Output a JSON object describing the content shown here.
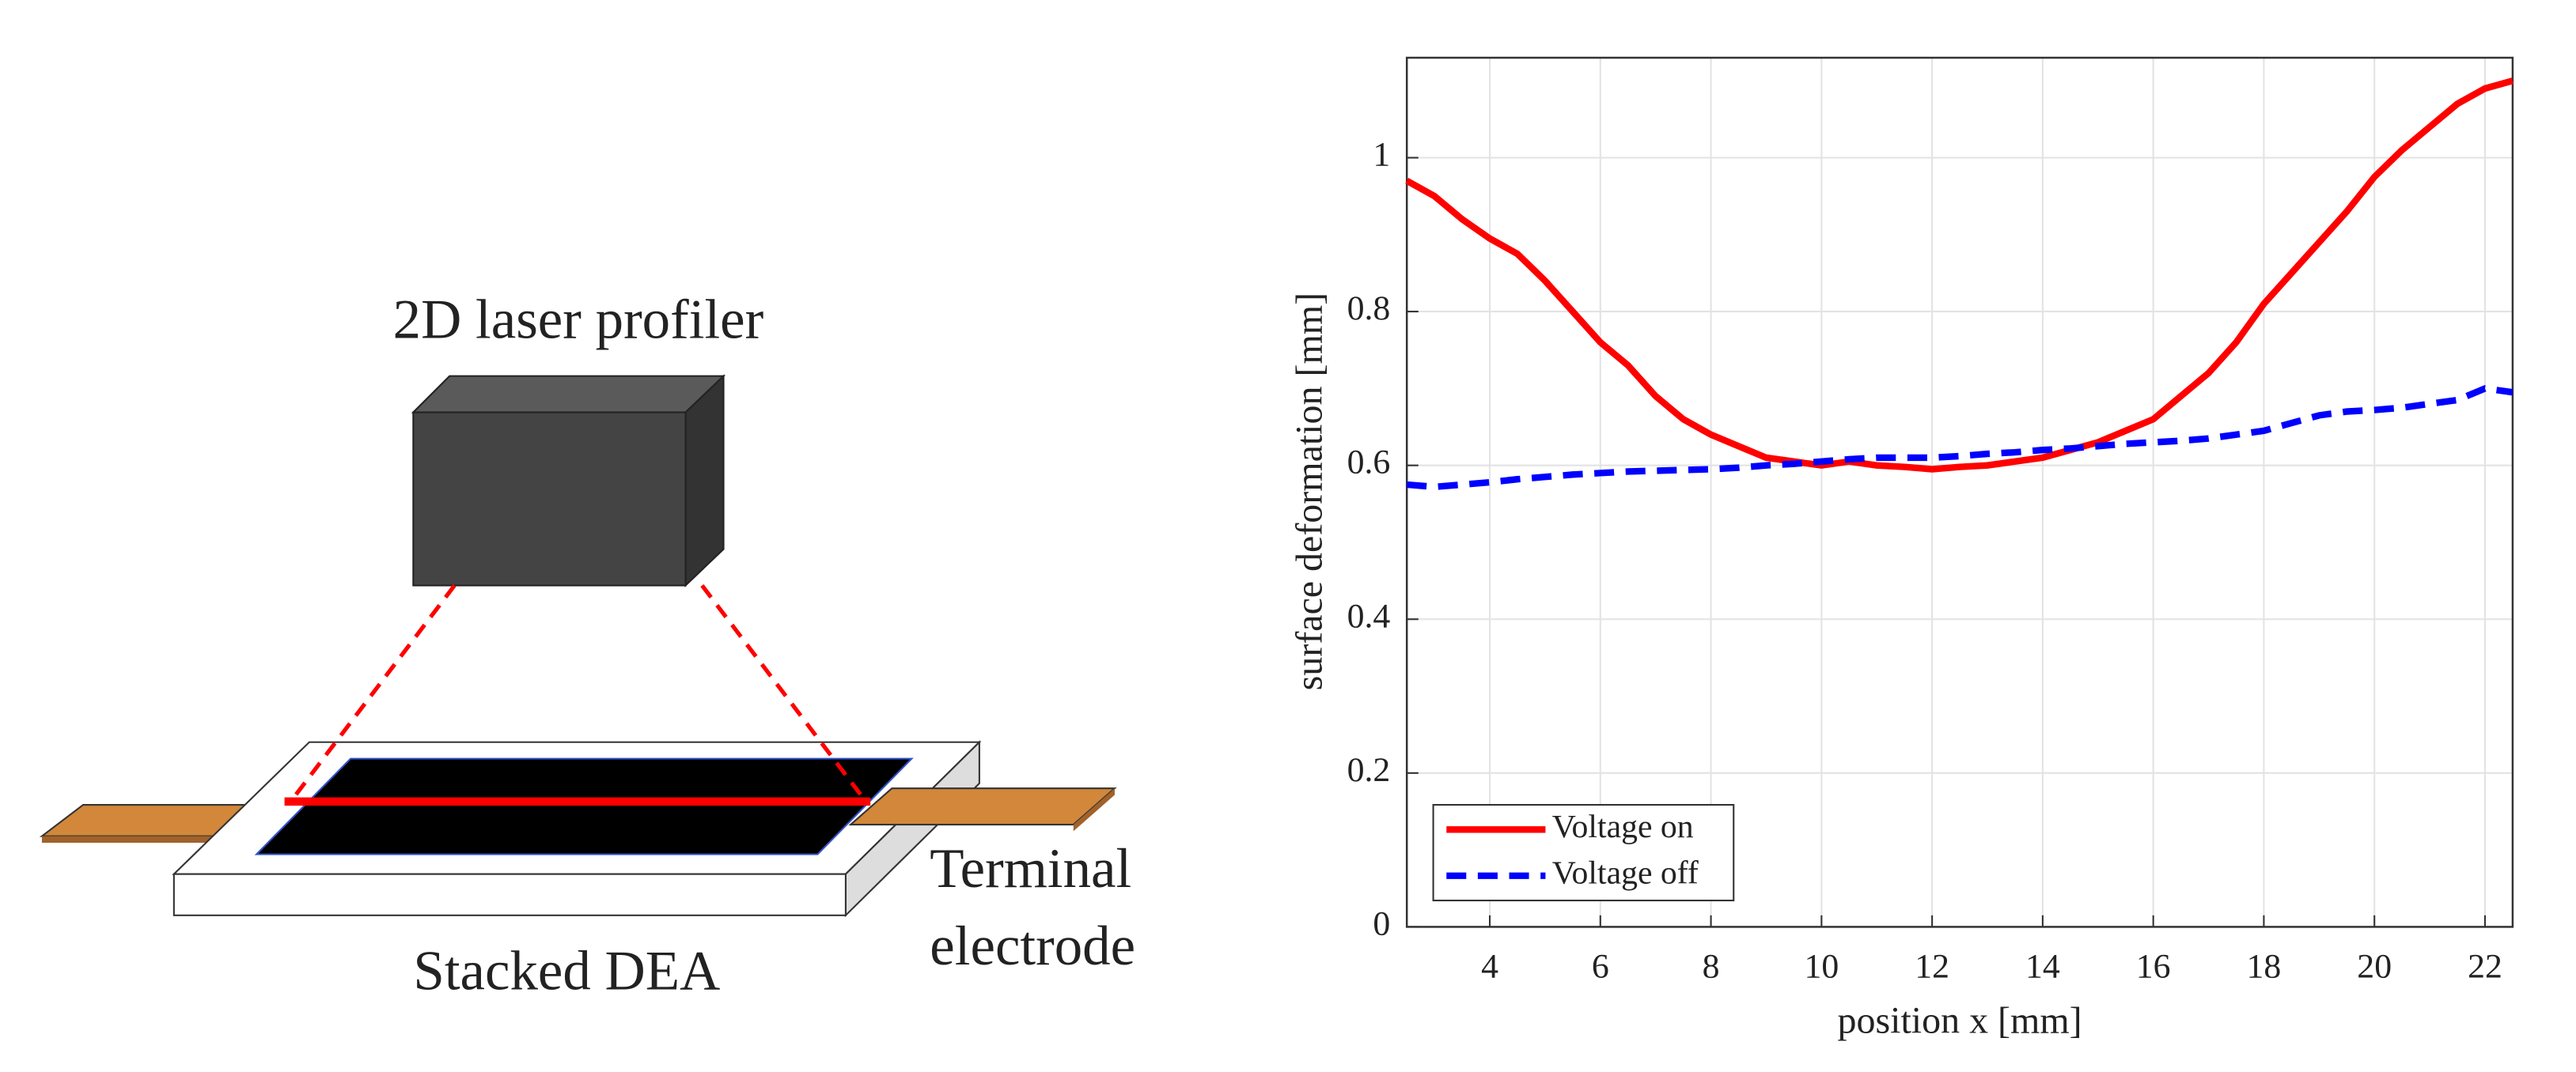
{
  "diagram": {
    "profiler_label": "2D laser profiler",
    "dea_label": "Stacked DEA",
    "electrode_label": [
      "Terminal",
      "electrode"
    ]
  },
  "chart_data": {
    "type": "line",
    "xlabel": "position x [mm]",
    "ylabel": "surface deformation [mm]",
    "x": [
      2.5,
      3,
      3.5,
      4,
      4.5,
      5,
      5.5,
      6,
      6.5,
      7,
      7.5,
      8,
      8.5,
      9,
      9.5,
      10,
      10.5,
      11,
      11.5,
      12,
      12.5,
      13,
      13.5,
      14,
      14.5,
      15,
      15.5,
      16,
      16.5,
      17,
      17.5,
      18,
      18.5,
      19,
      19.5,
      20,
      20.5,
      21,
      21.5,
      22,
      22.5
    ],
    "series": [
      {
        "name": "Voltage on",
        "color": "#ff0000",
        "dash": false,
        "values": [
          0.97,
          0.95,
          0.92,
          0.895,
          0.875,
          0.84,
          0.8,
          0.76,
          0.73,
          0.69,
          0.66,
          0.64,
          0.625,
          0.61,
          0.605,
          0.6,
          0.605,
          0.6,
          0.598,
          0.595,
          0.598,
          0.6,
          0.605,
          0.61,
          0.62,
          0.63,
          0.645,
          0.66,
          0.69,
          0.72,
          0.76,
          0.81,
          0.85,
          0.89,
          0.93,
          0.975,
          1.01,
          1.04,
          1.07,
          1.09,
          1.1
        ]
      },
      {
        "name": "Voltage off",
        "color": "#0000ff",
        "dash": true,
        "values": [
          0.575,
          0.572,
          0.575,
          0.578,
          0.582,
          0.585,
          0.588,
          0.59,
          0.592,
          0.593,
          0.594,
          0.595,
          0.597,
          0.6,
          0.602,
          0.605,
          0.608,
          0.61,
          0.61,
          0.61,
          0.612,
          0.615,
          0.617,
          0.62,
          0.622,
          0.625,
          0.628,
          0.63,
          0.632,
          0.635,
          0.64,
          0.645,
          0.655,
          0.665,
          0.67,
          0.672,
          0.675,
          0.68,
          0.685,
          0.7,
          0.695
        ]
      }
    ],
    "xlim": [
      2.5,
      22.5
    ],
    "xticks": [
      4,
      6,
      8,
      10,
      12,
      14,
      16,
      18,
      20,
      22
    ],
    "ylim": [
      0,
      1.13
    ],
    "yticks": [
      0,
      0.2,
      0.4,
      0.6,
      0.8,
      1
    ],
    "grid": true,
    "legend": "lower left"
  }
}
